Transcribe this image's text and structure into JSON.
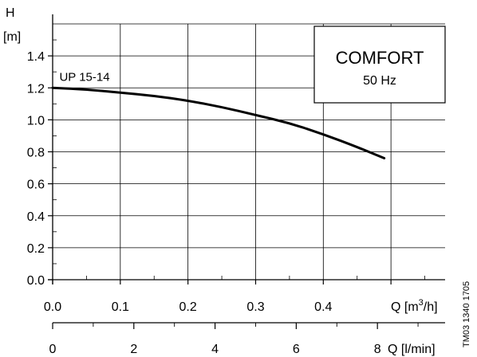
{
  "chart_data": {
    "type": "line",
    "y_axis_label_line1": "H",
    "y_axis_label_line2": "[m]",
    "x_axis_label_flow_prefix": "Q [m",
    "x_axis_label_flow_sup": "3",
    "x_axis_label_flow_suffix": "/h]",
    "x2_axis_label": "Q [l/min]",
    "xlim": [
      0,
      0.58
    ],
    "ylim": [
      0,
      1.6
    ],
    "x_ticks": [
      "0.0",
      "0.1",
      "0.2",
      "0.3",
      "0.4"
    ],
    "x_tick_values": [
      0.0,
      0.1,
      0.2,
      0.3,
      0.4
    ],
    "x2_ticks": [
      "0",
      "2",
      "4",
      "6",
      "8"
    ],
    "x2_tick_values": [
      0,
      2,
      4,
      6,
      8
    ],
    "y_ticks": [
      "0.0",
      "0.2",
      "0.4",
      "0.6",
      "0.8",
      "1.0",
      "1.2",
      "1.4"
    ],
    "y_tick_values": [
      0.0,
      0.2,
      0.4,
      0.6,
      0.8,
      1.0,
      1.2,
      1.4
    ],
    "grid": true,
    "legend_box": {
      "title": "COMFORT",
      "subtitle": "50 Hz",
      "placement": "top-right"
    },
    "series": [
      {
        "name": "UP 15-14",
        "x": [
          0.0,
          0.05,
          0.1,
          0.15,
          0.2,
          0.25,
          0.3,
          0.35,
          0.4,
          0.45,
          0.49
        ],
        "y": [
          1.2,
          1.19,
          1.17,
          1.15,
          1.12,
          1.08,
          1.03,
          0.98,
          0.91,
          0.83,
          0.76
        ]
      }
    ],
    "watermark": "TM03 1340 1705"
  }
}
